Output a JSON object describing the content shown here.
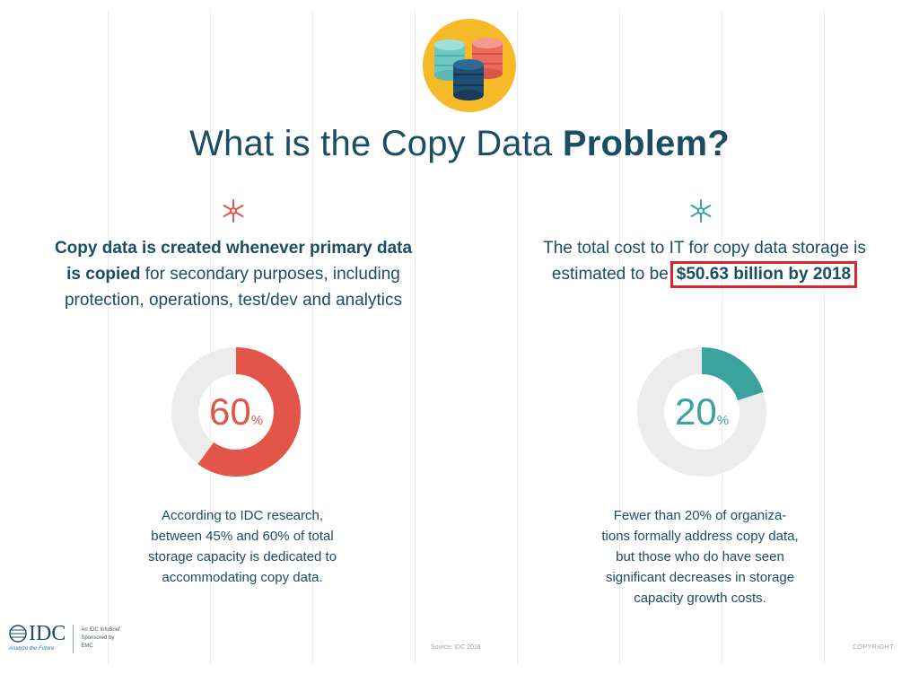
{
  "title": {
    "regular": "What is the Copy Data ",
    "strong": "Problem?"
  },
  "icons": {
    "hero": "database-stack-icon",
    "asterisk_left": "asterisk-icon",
    "asterisk_right": "asterisk-icon"
  },
  "left": {
    "lead_bold_1": "Copy data is created whenever primary data",
    "lead_bold_2": "is copied",
    "lead_rest_2": " for secondary purposes, including",
    "lead_3": "protection, operations, test/dev and analytics",
    "donut": {
      "value": "60",
      "unit": "%",
      "fraction": 0.6,
      "color": "#e25548"
    },
    "note": [
      "According to IDC research,",
      "between 45% and 60% of total",
      "storage capacity is dedicated to",
      "accommodating copy data."
    ]
  },
  "right": {
    "lead_1": "The total cost to IT for copy data storage is",
    "lead_2": "estimated to be",
    "lead_highlight": "$50.63 billion by 2018",
    "donut": {
      "value": "20",
      "unit": "%",
      "fraction": 0.2,
      "color": "#3aa39e"
    },
    "note": [
      "Fewer than 20% of organiza-",
      "tions formally address copy data,",
      "but those who do have seen",
      "significant decreases in storage",
      "capacity growth costs."
    ]
  },
  "footer": {
    "logo": "IDC",
    "logo_tagline": "Analyze the Future",
    "brief": [
      "An IDC InfoBrief",
      "Sponsored by",
      "EMC"
    ],
    "source": "Source: IDC 2016",
    "copyright": "COPYRIGHT"
  },
  "colors": {
    "heading": "#1b4d63",
    "accent_red": "#e25548",
    "accent_teal": "#3aa39e",
    "highlight_border": "#d9262c",
    "track": "#ececec"
  }
}
